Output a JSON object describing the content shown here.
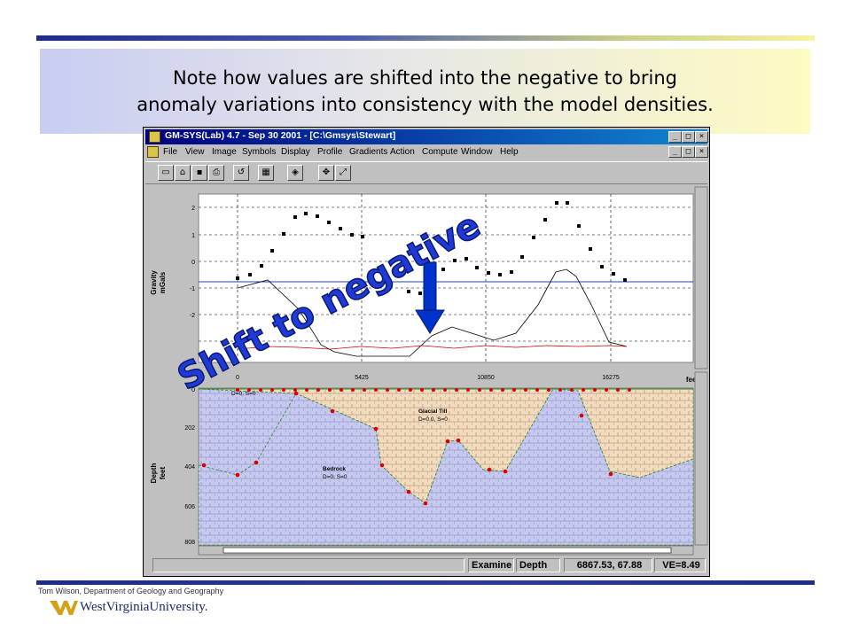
{
  "caption": {
    "line1": "Note how values are shifted into the negative to bring",
    "line2": "anomaly variations into consistency with the model densities."
  },
  "window": {
    "title": "GM-SYS(Lab) 4.7 - Sep 30 2001 - [C:\\Gmsys\\Stewart]",
    "controls": [
      "_",
      "□",
      "×"
    ],
    "menu": [
      "File",
      "View",
      "Image",
      "Symbols",
      "Display",
      "Profile",
      "Gradients",
      "Action",
      "Compute",
      "Window",
      "Help"
    ]
  },
  "toolbar_icons": [
    "new-icon",
    "open-icon",
    "save-icon",
    "print-icon",
    "undo-icon",
    "calculator-icon",
    "book-icon",
    "move-icon",
    "zoom-icon"
  ],
  "gravity_panel": {
    "ylabel_line1": "Gravity",
    "ylabel_line2": "mGals",
    "yticks": [
      "2",
      "1",
      "0",
      "-1",
      "-2"
    ]
  },
  "profile_axis": {
    "ticks": [
      "0",
      "5425",
      "10850",
      "16275"
    ],
    "unit": "feet"
  },
  "depth_panel": {
    "ylabel_line1": "Depth",
    "ylabel_line2": "feet",
    "yticks": [
      "0",
      "202",
      "404",
      "606",
      "808"
    ]
  },
  "bodies": {
    "glacial_till_name": "Glacial Till",
    "glacial_till_props": "D=0.0, S=0",
    "bedrock_name": "Bedrock",
    "bedrock_props": "D=0, S=0",
    "top_label": "D=0, S=0"
  },
  "annotation": {
    "text": "Shift to negative",
    "arrow_color": "#0033cc",
    "text_color": "#1f3ad6"
  },
  "status": {
    "mode": "Examine",
    "type": "Depth",
    "coords": "6867.53, 67.88",
    "ve": "VE=8.49"
  },
  "footer": {
    "credit": "Tom Wilson, Department of Geology and Geography",
    "university": "WestVirginiaUniversity."
  },
  "colors": {
    "observed": "#000000",
    "calculated": "#000000",
    "error": "#cc0000",
    "datum": "#2040c0",
    "till_fill": "#f1dcc0",
    "bedrock_fill": "#c6c8ee",
    "surface": "#2e8b2e"
  }
}
